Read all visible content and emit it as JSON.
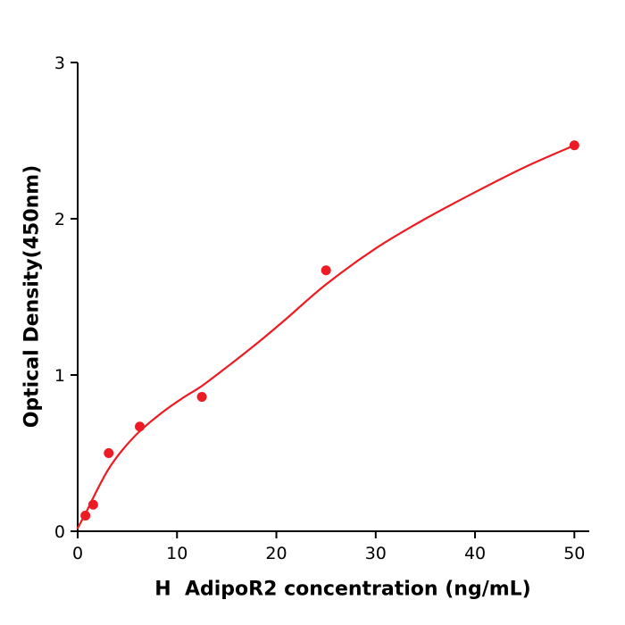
{
  "figure": {
    "background": "#ffffff",
    "axis_color": "#000000"
  },
  "chart_data": {
    "type": "scatter",
    "title": "",
    "xlabel": "H  AdipoR2 concentration (ng/mL)",
    "ylabel": "Optical Density(450nm)",
    "xlim": [
      0,
      51.5
    ],
    "ylim": [
      0,
      3
    ],
    "x_ticks": [
      0,
      10,
      20,
      30,
      40,
      50
    ],
    "y_ticks": [
      0,
      1,
      2,
      3
    ],
    "grid": false,
    "legend_position": "none",
    "series": [
      {
        "name": "fitted-curve",
        "type": "line",
        "color": "#ed1c24",
        "points": [
          [
            0,
            0.02
          ],
          [
            1,
            0.14
          ],
          [
            2,
            0.27
          ],
          [
            3.125,
            0.4
          ],
          [
            4.5,
            0.52
          ],
          [
            6.25,
            0.64
          ],
          [
            8.5,
            0.76
          ],
          [
            10.5,
            0.85
          ],
          [
            12.5,
            0.93
          ],
          [
            15,
            1.05
          ],
          [
            18,
            1.2
          ],
          [
            21,
            1.36
          ],
          [
            25,
            1.58
          ],
          [
            30,
            1.81
          ],
          [
            35,
            2.0
          ],
          [
            40,
            2.17
          ],
          [
            45,
            2.33
          ],
          [
            50,
            2.47
          ]
        ]
      },
      {
        "name": "standard-points",
        "type": "scatter",
        "color": "#ed1c24",
        "points": [
          [
            0.78,
            0.1
          ],
          [
            1.56,
            0.17
          ],
          [
            3.125,
            0.5
          ],
          [
            6.25,
            0.67
          ],
          [
            12.5,
            0.86
          ],
          [
            25,
            1.67
          ],
          [
            50,
            2.47
          ]
        ]
      }
    ]
  }
}
